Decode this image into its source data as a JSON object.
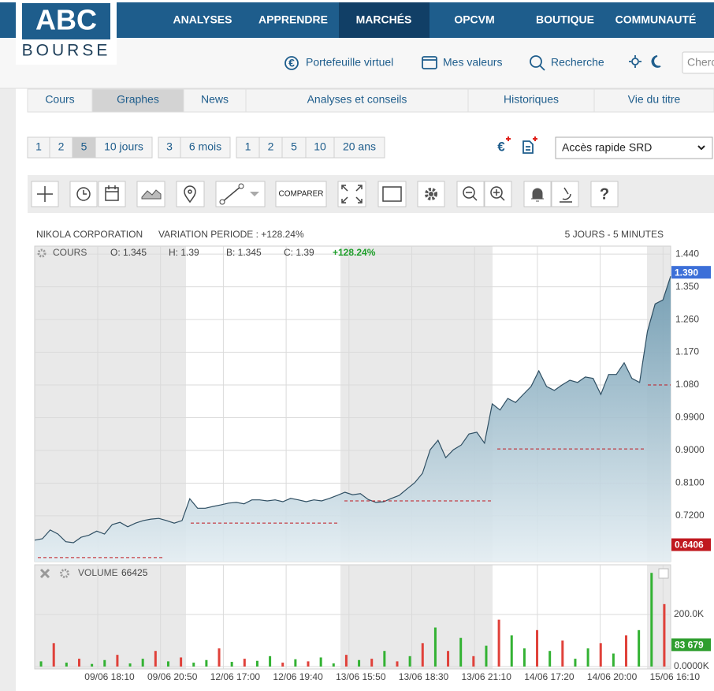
{
  "header": {
    "logo_top": "ABC",
    "logo_bottom": "BOURSE",
    "nav": [
      "ANALYSES",
      "APPRENDRE",
      "MARCHÉS",
      "OPCVM",
      "BOUTIQUE",
      "COMMUNAUTÉ"
    ],
    "active_nav": 2,
    "links": [
      "Portefeuille virtuel",
      "Mes valeurs",
      "Recherche"
    ],
    "search_placeholder": "Cherc"
  },
  "tabs": [
    "Cours",
    "Graphes",
    "News",
    "Analyses et conseils",
    "Historiques",
    "Vie du titre"
  ],
  "active_tab": 1,
  "periods": [
    [
      "1",
      "2",
      "5",
      "10 jours"
    ],
    [
      "3",
      "6 mois"
    ],
    [
      "1",
      "2",
      "5",
      "10",
      "20 ans"
    ]
  ],
  "active_period": [
    0,
    2
  ],
  "quick_access": "Accès rapide SRD",
  "compare_button": "COMPARER",
  "chart_info": {
    "stock": "NIKOLA CORPORATION",
    "variation": "VARIATION PERIODE : +128.24%",
    "period": "5 JOURS - 5 MINUTES",
    "open": "O: 1.345",
    "high": "H: 1.39",
    "low": "B: 1.345",
    "close": "C: 1.39",
    "change": "+128.24%",
    "volume_now": "66425"
  },
  "chart_data": [
    {
      "type": "area",
      "series": [
        {
          "name": "COURS",
          "color": "#2f4f63",
          "values": [
            0.653,
            0.657,
            0.681,
            0.67,
            0.649,
            0.646,
            0.661,
            0.667,
            0.678,
            0.67,
            0.696,
            0.702,
            0.69,
            0.7,
            0.707,
            0.711,
            0.713,
            0.707,
            0.7,
            0.707,
            0.767,
            0.741,
            0.741,
            0.746,
            0.75,
            0.755,
            0.757,
            0.753,
            0.764,
            0.764,
            0.761,
            0.764,
            0.759,
            0.768,
            0.764,
            0.759,
            0.764,
            0.761,
            0.768,
            0.776,
            0.785,
            0.778,
            0.781,
            0.765,
            0.757,
            0.759,
            0.768,
            0.776,
            0.794,
            0.811,
            0.837,
            0.902,
            0.928,
            0.88,
            0.902,
            0.915,
            0.945,
            0.95,
            0.92,
            1.028,
            1.011,
            1.043,
            1.032,
            1.054,
            1.076,
            1.119,
            1.076,
            1.065,
            1.08,
            1.093,
            1.087,
            1.102,
            1.098,
            1.054,
            1.109,
            1.109,
            1.141,
            1.098,
            1.087,
            1.227,
            1.303,
            1.314,
            1.379
          ]
        }
      ],
      "ylim": [
        0.594,
        1.462
      ],
      "yticks": [
        {
          "value": 1.44,
          "label": "1.440"
        },
        {
          "value": 1.35,
          "label": "1.350"
        },
        {
          "value": 1.26,
          "label": "1.260"
        },
        {
          "value": 1.17,
          "label": "1.170"
        },
        {
          "value": 1.08,
          "label": "1.080"
        },
        {
          "value": 0.99,
          "label": "0.9900"
        },
        {
          "value": 0.9,
          "label": "0.9000"
        },
        {
          "value": 0.81,
          "label": "0.8100"
        },
        {
          "value": 0.72,
          "label": "0.7200"
        }
      ],
      "reference_lines": [
        0.605,
        0.7,
        0.761,
        0.904,
        1.08
      ],
      "reference_color": "#c0181f",
      "last_value": {
        "value": 1.39,
        "label": "1.390"
      },
      "low_value": 0.6406,
      "grid": true
    },
    {
      "type": "bar",
      "series": [
        {
          "name": "VOLUME",
          "values": [
            20,
            90,
            15,
            30,
            10,
            25,
            45,
            12,
            30,
            60,
            20,
            35,
            15,
            25,
            70,
            18,
            30,
            22,
            40,
            15,
            28,
            20,
            35,
            12,
            45,
            25,
            30,
            60,
            20,
            40,
            90,
            150,
            60,
            110,
            40,
            80,
            180,
            120,
            70,
            140,
            60,
            100,
            30,
            70,
            90,
            50,
            120,
            140,
            360,
            240
          ],
          "colors": [
            "#33b233",
            "#e0413a",
            "#33b233",
            "#e0413a",
            "#33b233",
            "#33b233",
            "#e0413a",
            "#33b233",
            "#33b233",
            "#e0413a",
            "#33b233",
            "#e0413a",
            "#33b233",
            "#33b233",
            "#e0413a",
            "#33b233",
            "#e0413a",
            "#33b233",
            "#33b233",
            "#e0413a",
            "#33b233",
            "#e0413a",
            "#33b233",
            "#33b233",
            "#e0413a",
            "#33b233",
            "#e0413a",
            "#33b233",
            "#e0413a",
            "#33b233",
            "#e0413a",
            "#33b233",
            "#e0413a",
            "#33b233",
            "#e0413a",
            "#33b233",
            "#e0413a",
            "#33b233",
            "#33b233",
            "#e0413a",
            "#33b233",
            "#e0413a",
            "#33b233",
            "#33b233",
            "#e0413a",
            "#33b233",
            "#e0413a",
            "#33b233",
            "#33b233",
            "#e0413a"
          ]
        }
      ],
      "ylim": [
        0,
        391
      ],
      "yticks": [
        {
          "value": 200,
          "label": "200.0K"
        },
        {
          "value": 0,
          "label": "0.0000K"
        }
      ],
      "last_value": {
        "value": 83.679,
        "label": "83 679"
      },
      "x_labels": [
        "09/06 18:10",
        "09/06 20:50",
        "12/06 17:00",
        "12/06 19:40",
        "13/06 15:50",
        "13/06 18:30",
        "13/06 21:10",
        "14/06 17:20",
        "14/06 20:00",
        "15/06 16:10"
      ]
    }
  ]
}
